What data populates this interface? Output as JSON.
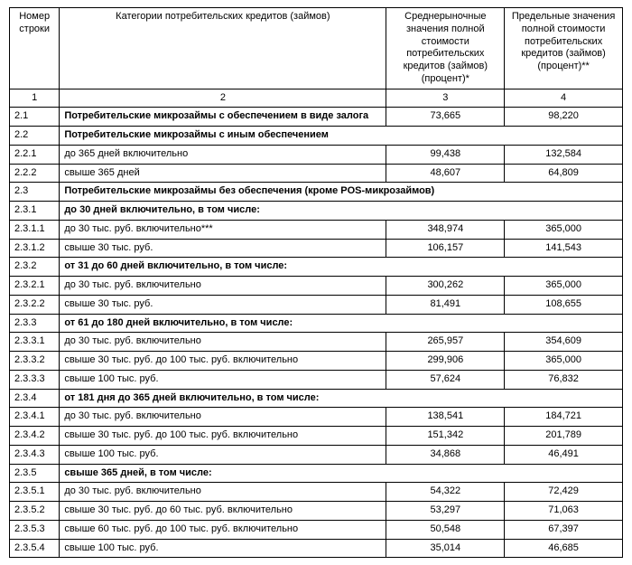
{
  "columns": {
    "c1": "Номер\nстроки",
    "c2": "Категории потребительских кредитов (займов)",
    "c3": "Среднерыночные значения полной стоимости потребительских кредитов (займов) (процент)*",
    "c4": "Предельные значения полной стоимости потребительских кредитов (займов) (процент)**"
  },
  "colnums": {
    "n1": "1",
    "n2": "2",
    "n3": "3",
    "n4": "4"
  },
  "widths": {
    "c1": 55,
    "c2": 360,
    "c3": 130,
    "c4": 130
  },
  "rows": [
    {
      "num": "2.1",
      "cat": "Потребительские микрозаймы с обеспечением в виде залога",
      "v1": "73,665",
      "v2": "98,220",
      "bold": true,
      "span": false
    },
    {
      "num": "2.2",
      "cat": "Потребительские микрозаймы с иным обеспечением",
      "v1": "",
      "v2": "",
      "bold": true,
      "span": true
    },
    {
      "num": "2.2.1",
      "cat": "до 365 дней включительно",
      "v1": "99,438",
      "v2": "132,584",
      "bold": false,
      "span": false
    },
    {
      "num": "2.2.2",
      "cat": "свыше 365 дней",
      "v1": "48,607",
      "v2": "64,809",
      "bold": false,
      "span": false
    },
    {
      "num": "2.3",
      "cat": "Потребительские микрозаймы без обеспечения (кроме POS-микрозаймов)",
      "v1": "",
      "v2": "",
      "bold": true,
      "span": true
    },
    {
      "num": "2.3.1",
      "cat": "до 30 дней включительно, в том числе:",
      "v1": "",
      "v2": "",
      "bold": true,
      "span": true
    },
    {
      "num": "2.3.1.1",
      "cat": "до 30 тыс. руб. включительно***",
      "v1": "348,974",
      "v2": "365,000",
      "bold": false,
      "span": false
    },
    {
      "num": "2.3.1.2",
      "cat": "свыше 30 тыс. руб.",
      "v1": "106,157",
      "v2": "141,543",
      "bold": false,
      "span": false
    },
    {
      "num": "2.3.2",
      "cat": "от 31 до 60 дней включительно, в том числе:",
      "v1": "",
      "v2": "",
      "bold": true,
      "span": true
    },
    {
      "num": "2.3.2.1",
      "cat": "до 30 тыс. руб. включительно",
      "v1": "300,262",
      "v2": "365,000",
      "bold": false,
      "span": false
    },
    {
      "num": "2.3.2.2",
      "cat": "свыше 30 тыс. руб.",
      "v1": "81,491",
      "v2": "108,655",
      "bold": false,
      "span": false
    },
    {
      "num": "2.3.3",
      "cat": "от 61 до 180 дней включительно, в том числе:",
      "v1": "",
      "v2": "",
      "bold": true,
      "span": true
    },
    {
      "num": "2.3.3.1",
      "cat": "до 30 тыс. руб. включительно",
      "v1": "265,957",
      "v2": "354,609",
      "bold": false,
      "span": false
    },
    {
      "num": "2.3.3.2",
      "cat": "свыше 30 тыс. руб. до 100 тыс. руб. включительно",
      "v1": "299,906",
      "v2": "365,000",
      "bold": false,
      "span": false
    },
    {
      "num": "2.3.3.3",
      "cat": "свыше 100 тыс. руб.",
      "v1": "57,624",
      "v2": "76,832",
      "bold": false,
      "span": false
    },
    {
      "num": "2.3.4",
      "cat": "от 181 дня до 365 дней включительно, в том числе:",
      "v1": "",
      "v2": "",
      "bold": true,
      "span": true
    },
    {
      "num": "2.3.4.1",
      "cat": "до 30 тыс. руб. включительно",
      "v1": "138,541",
      "v2": "184,721",
      "bold": false,
      "span": false
    },
    {
      "num": "2.3.4.2",
      "cat": "свыше 30 тыс. руб. до 100 тыс. руб. включительно",
      "v1": "151,342",
      "v2": "201,789",
      "bold": false,
      "span": false
    },
    {
      "num": "2.3.4.3",
      "cat": "свыше 100 тыс. руб.",
      "v1": "34,868",
      "v2": "46,491",
      "bold": false,
      "span": false
    },
    {
      "num": "2.3.5",
      "cat": "свыше 365 дней, в том числе:",
      "v1": "",
      "v2": "",
      "bold": true,
      "span": true
    },
    {
      "num": "2.3.5.1",
      "cat": "до 30 тыс. руб. включительно",
      "v1": "54,322",
      "v2": "72,429",
      "bold": false,
      "span": false
    },
    {
      "num": "2.3.5.2",
      "cat": "свыше 30 тыс. руб. до 60 тыс. руб. включительно",
      "v1": "53,297",
      "v2": "71,063",
      "bold": false,
      "span": false
    },
    {
      "num": "2.3.5.3",
      "cat": "свыше 60 тыс. руб. до 100 тыс. руб. включительно",
      "v1": "50,548",
      "v2": "67,397",
      "bold": false,
      "span": false
    },
    {
      "num": "2.3.5.4",
      "cat": "свыше 100 тыс. руб.",
      "v1": "35,014",
      "v2": "46,685",
      "bold": false,
      "span": false
    }
  ]
}
